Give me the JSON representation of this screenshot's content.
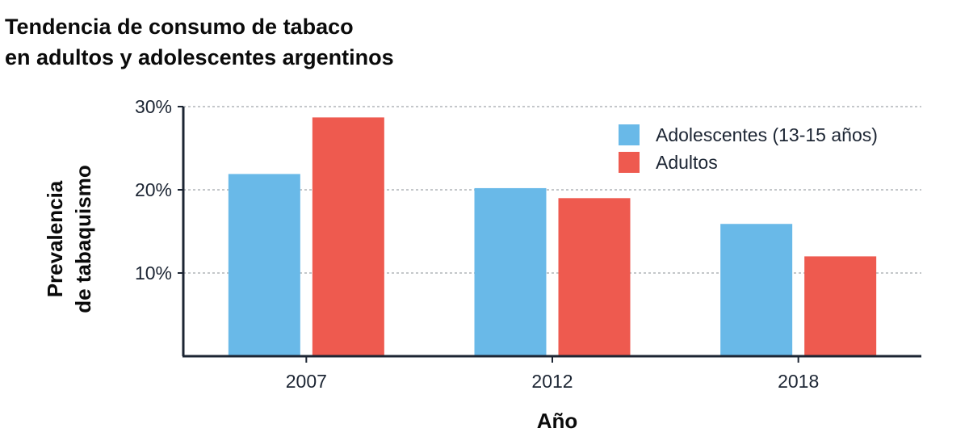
{
  "chart_data": {
    "type": "bar",
    "title_lines": [
      "Tendencia de consumo de tabaco",
      "en adultos y adolescentes argentinos"
    ],
    "xlabel": "Año",
    "ylabel_lines": [
      "Prevalencia",
      "de tabaquismo"
    ],
    "categories": [
      "2007",
      "2012",
      "2018"
    ],
    "series": [
      {
        "name": "Adolescentes (13-15 años)",
        "values": [
          21.9,
          20.2,
          15.9
        ],
        "color": "#69b9e8"
      },
      {
        "name": "Adultos",
        "values": [
          28.7,
          19.0,
          12.0
        ],
        "color": "#ee5a4f"
      }
    ],
    "ylim": [
      0,
      30
    ],
    "yticks": [
      {
        "value": 10,
        "label": "10%"
      },
      {
        "value": 20,
        "label": "20%"
      },
      {
        "value": 30,
        "label": "30%"
      }
    ],
    "grid": "horizontal-dashed",
    "legend_position": "top-right"
  }
}
